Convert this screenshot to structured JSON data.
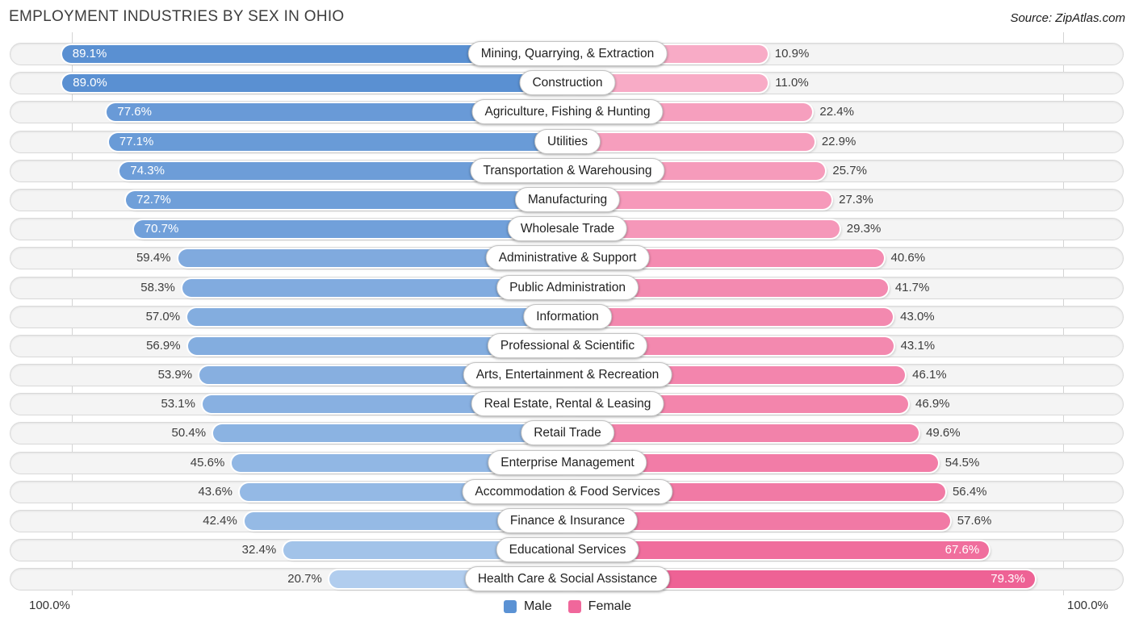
{
  "title": "EMPLOYMENT INDUSTRIES BY SEX IN OHIO",
  "source": "Source: ZipAtlas.com",
  "axis": {
    "left_label": "100.0%",
    "right_label": "100.0%"
  },
  "legend": {
    "male_label": "Male",
    "female_label": "Female"
  },
  "colors": {
    "male_dark": "#5a90d2",
    "male_light": "#b1cdee",
    "female_dark": "#ee6295",
    "female_light": "#f8abc6",
    "legend_male": "#5b92d4",
    "legend_female": "#f0679b",
    "track_fill": "#f4f4f4",
    "gridline": "#d4d4d4"
  },
  "chart_data": {
    "type": "bar",
    "variant": "diverging-horizontal",
    "title": "EMPLOYMENT INDUSTRIES BY SEX IN OHIO",
    "value_suffix": "%",
    "axis_range_each_side": [
      0,
      100
    ],
    "legend_position": "bottom-center",
    "grid": "100% gridline on each side",
    "categories": [
      "Mining, Quarrying, & Extraction",
      "Construction",
      "Agriculture, Fishing & Hunting",
      "Utilities",
      "Transportation & Warehousing",
      "Manufacturing",
      "Wholesale Trade",
      "Administrative & Support",
      "Public Administration",
      "Information",
      "Professional & Scientific",
      "Arts, Entertainment & Recreation",
      "Real Estate, Rental & Leasing",
      "Retail Trade",
      "Enterprise Management",
      "Accommodation & Food Services",
      "Finance & Insurance",
      "Educational Services",
      "Health Care & Social Assistance"
    ],
    "series": [
      {
        "name": "Male",
        "values": [
          89.1,
          89.0,
          77.6,
          77.1,
          74.3,
          72.7,
          70.7,
          59.4,
          58.3,
          57.0,
          56.9,
          53.9,
          53.1,
          50.4,
          45.6,
          43.6,
          42.4,
          32.4,
          20.7
        ]
      },
      {
        "name": "Female",
        "values": [
          10.9,
          11.0,
          22.4,
          22.9,
          25.7,
          27.3,
          29.3,
          40.6,
          41.7,
          43.0,
          43.1,
          46.1,
          46.9,
          49.6,
          54.5,
          56.4,
          57.6,
          67.6,
          79.3
        ]
      }
    ]
  }
}
